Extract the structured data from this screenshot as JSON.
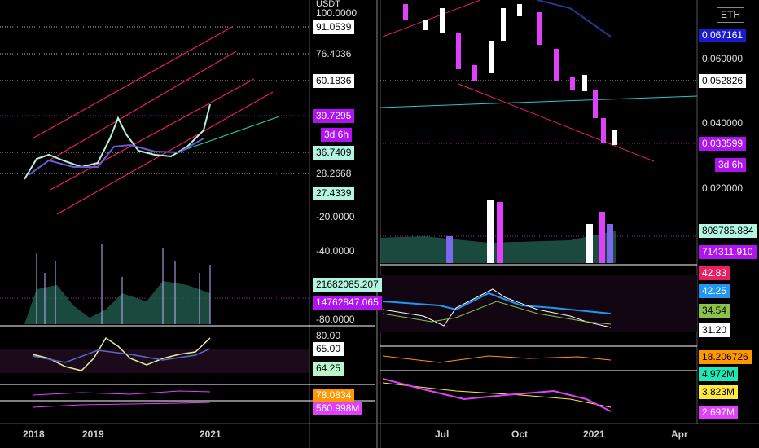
{
  "left_panel": {
    "price_axis": [
      "USDT",
      "100.0000",
      "91.0539",
      "76.4036",
      "60.1836",
      "39.7295",
      "3d 6h",
      "36.7409",
      "28.2668",
      "27.4339",
      "-20.0000",
      "-40.0000",
      "21682085.207",
      "14762847.065",
      "-80.0000",
      "80.00",
      "65.00",
      "64.25",
      "78.0834",
      "560.998M"
    ],
    "time_axis": [
      "2018",
      "2019",
      "2021"
    ]
  },
  "right_panel": {
    "symbol": "ETH",
    "price_axis": [
      "0.067161",
      "0.060000",
      "0.052826",
      "0.040000",
      "0.033599",
      "3d 6h",
      "0.020000",
      "808785.884",
      "714311.910",
      "42.83",
      "42.25",
      "34.54",
      "31.20",
      "18.206726",
      "4.972M",
      "3.823M",
      "2.697M"
    ],
    "time_axis": [
      "Jul",
      "Oct",
      "2021",
      "Apr"
    ]
  }
}
